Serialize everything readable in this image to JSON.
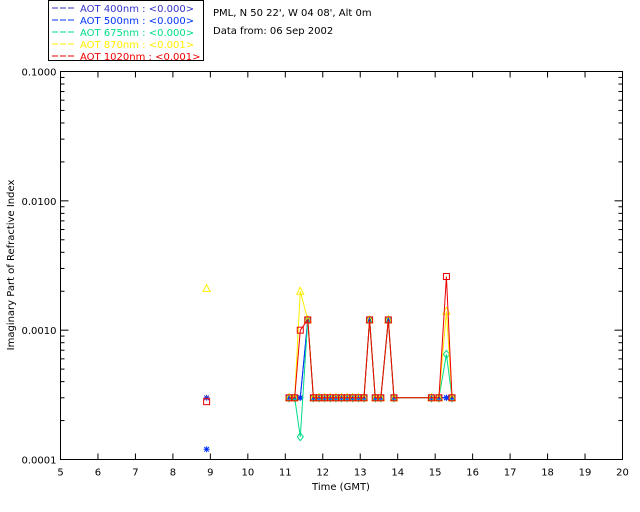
{
  "chart_data": {
    "type": "line",
    "info_lines": [
      "PML, N 50 22', W 04 08', Alt 0m",
      "Data from: 06 Sep 2002"
    ],
    "xlabel": "Time (GMT)",
    "ylabel": "Imaginary Part of Refractive Index",
    "xlim": [
      5,
      20
    ],
    "ylim": [
      0.0001,
      0.1
    ],
    "yscale": "log",
    "x_ticks": [
      "5",
      "6",
      "7",
      "8",
      "9",
      "10",
      "11",
      "12",
      "13",
      "14",
      "15",
      "16",
      "17",
      "18",
      "19",
      "20"
    ],
    "y_ticks": [
      {
        "value": 0.0001,
        "label": "0.0001"
      },
      {
        "value": 0.001,
        "label": "0.0010"
      },
      {
        "value": 0.01,
        "label": "0.0100"
      },
      {
        "value": 0.1,
        "label": "0.1000"
      }
    ],
    "legend_position": "top-left",
    "series": [
      {
        "name": "AOT  400nm : <0.000>",
        "color": "#3333cc",
        "marker": "star",
        "x": [
          8.9,
          11.1,
          11.25,
          11.4,
          11.6,
          11.75,
          11.9,
          12.05,
          12.2,
          12.35,
          12.5,
          12.65,
          12.8,
          12.95,
          13.1,
          13.25,
          13.4,
          13.55,
          13.75,
          13.9,
          14.9,
          15.1,
          15.3,
          15.45
        ],
        "y": [
          0.0003,
          0.0003,
          0.0003,
          0.0003,
          0.0012,
          0.0003,
          0.0003,
          0.0003,
          0.0003,
          0.0003,
          0.0003,
          0.0003,
          0.0003,
          0.0003,
          0.0003,
          0.0012,
          0.0003,
          0.0003,
          0.0012,
          0.0003,
          0.0003,
          0.0003,
          0.0003,
          0.0003
        ]
      },
      {
        "name": "AOT  500nm : <0.000>",
        "color": "#0033ff",
        "marker": "star",
        "x": [
          8.9,
          11.1,
          11.25,
          11.4,
          11.6,
          11.75,
          11.9,
          12.05,
          12.2,
          12.35,
          12.5,
          12.65,
          12.8,
          12.95,
          13.1,
          13.25,
          13.4,
          13.55,
          13.75,
          13.9,
          14.9,
          15.1,
          15.3,
          15.45
        ],
        "y": [
          0.00012,
          0.0003,
          0.0003,
          0.0003,
          0.0012,
          0.0003,
          0.0003,
          0.0003,
          0.0003,
          0.0003,
          0.0003,
          0.0003,
          0.0003,
          0.0003,
          0.0003,
          0.0012,
          0.0003,
          0.0003,
          0.0012,
          0.0003,
          0.0003,
          0.0003,
          0.0003,
          0.0003
        ]
      },
      {
        "name": "AOT  675nm : <0.000>",
        "color": "#00dd88",
        "marker": "diamond",
        "x": [
          11.1,
          11.25,
          11.4,
          11.6,
          11.75,
          11.9,
          12.05,
          12.2,
          12.35,
          12.5,
          12.65,
          12.8,
          12.95,
          13.1,
          13.25,
          13.4,
          13.55,
          13.75,
          13.9,
          14.9,
          15.1,
          15.3,
          15.45
        ],
        "y": [
          0.0003,
          0.0003,
          0.00015,
          0.0012,
          0.0003,
          0.0003,
          0.0003,
          0.0003,
          0.0003,
          0.0003,
          0.0003,
          0.0003,
          0.0003,
          0.0003,
          0.0012,
          0.0003,
          0.0003,
          0.0012,
          0.0003,
          0.0003,
          0.0003,
          0.00065,
          0.0003
        ]
      },
      {
        "name": "AOT  870nm : <0.001>",
        "color": "#ffee00",
        "marker": "triangle",
        "x": [
          8.9,
          11.1,
          11.25,
          11.4,
          11.6,
          11.75,
          11.9,
          12.05,
          12.2,
          12.35,
          12.5,
          12.65,
          12.8,
          12.95,
          13.1,
          13.25,
          13.4,
          13.55,
          13.75,
          13.9,
          14.9,
          15.1,
          15.3,
          15.45
        ],
        "y": [
          0.0021,
          0.0003,
          0.0003,
          0.002,
          0.0012,
          0.0003,
          0.0003,
          0.0003,
          0.0003,
          0.0003,
          0.0003,
          0.0003,
          0.0003,
          0.0003,
          0.0003,
          0.0012,
          0.0003,
          0.0003,
          0.0012,
          0.0003,
          0.0003,
          0.0003,
          0.0014,
          0.0003
        ]
      },
      {
        "name": "AOT 1020nm : <0.001>",
        "color": "#ee0000",
        "marker": "square",
        "x": [
          8.9,
          11.1,
          11.25,
          11.4,
          11.6,
          11.75,
          11.9,
          12.05,
          12.2,
          12.35,
          12.5,
          12.65,
          12.8,
          12.95,
          13.1,
          13.25,
          13.4,
          13.55,
          13.75,
          13.9,
          14.9,
          15.1,
          15.3,
          15.45
        ],
        "y": [
          0.00028,
          0.0003,
          0.0003,
          0.001,
          0.0012,
          0.0003,
          0.0003,
          0.0003,
          0.0003,
          0.0003,
          0.0003,
          0.0003,
          0.0003,
          0.0003,
          0.0003,
          0.0012,
          0.0003,
          0.0003,
          0.0012,
          0.0003,
          0.0003,
          0.0003,
          0.0026,
          0.0003
        ]
      }
    ]
  }
}
